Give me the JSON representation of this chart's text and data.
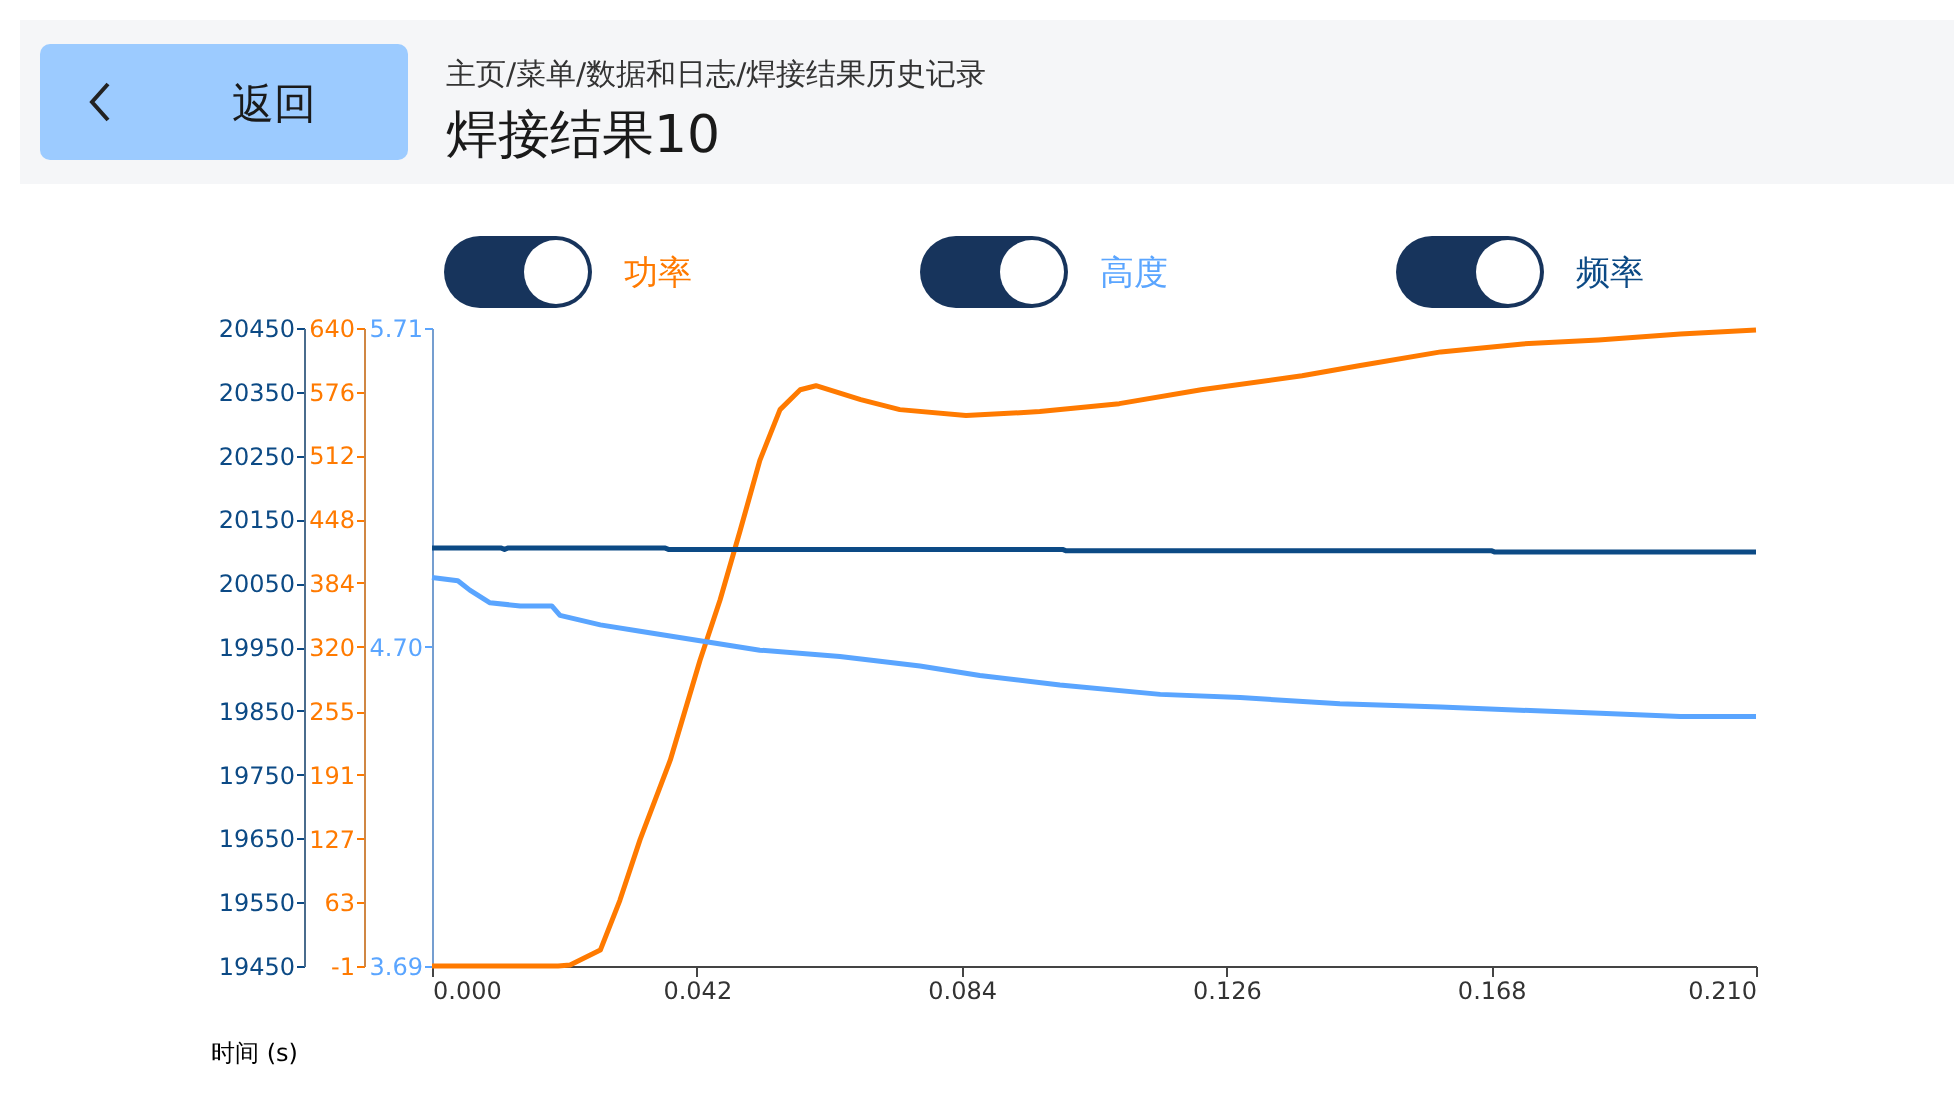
{
  "chart_data": {
    "type": "line",
    "title": "焊接结果10",
    "subtitle": "主页/菜单/数据和日志/焊接结果历史记录",
    "annotations": [
      "返回"
    ],
    "xlabel": "时间 (s)",
    "legend": "top",
    "xlim": [
      0,
      0.21
    ],
    "xticks": [
      {
        "value": 0,
        "label": "0.000"
      },
      0.042,
      0.084,
      0.126,
      0.168,
      {
        "value": 0.21,
        "label": "0.210"
      }
    ],
    "ylim": [
      19450,
      20450
    ],
    "yticks": [
      19450,
      19550,
      19650,
      19750,
      19850,
      19950,
      20050,
      20150,
      20250,
      20350,
      20450
    ],
    "y2lim": [
      -1,
      640
    ],
    "y2ticks": [
      -1,
      63,
      127,
      191,
      255,
      320,
      384,
      448,
      512,
      576,
      640
    ],
    "y3lim": [
      3.69,
      5.71
    ],
    "y3ticks": [
      3.69,
      {
        "value": 4.7,
        "label": "4.70"
      },
      5.71
    ],
    "series": [
      {
        "name": "功率",
        "color": "#ff7a00",
        "axis": "y2",
        "x": [
          0,
          0.02,
          0.0219,
          0.0267,
          0.0298,
          0.033,
          0.0378,
          0.0425,
          0.0457,
          0.0489,
          0.052,
          0.0552,
          0.0584,
          0.0609,
          0.068,
          0.0742,
          0.0847,
          0.0964,
          0.109,
          0.122,
          0.138,
          0.147,
          0.16,
          0.173,
          0.185,
          0.198,
          0.21
        ],
        "values": [
          -1,
          -1,
          0,
          15,
          65,
          126,
          206,
          306,
          367,
          437,
          507,
          558,
          578,
          582,
          568,
          558,
          552,
          556,
          564,
          578,
          592,
          602,
          616,
          624,
          628,
          634,
          638
        ]
      },
      {
        "name": "高度",
        "color": "#5aa5ff",
        "axis": "y3",
        "x": [
          0,
          0.0041,
          0.006,
          0.0092,
          0.014,
          0.019,
          0.0203,
          0.0267,
          0.033,
          0.0425,
          0.052,
          0.0647,
          0.0774,
          0.0869,
          0.0996,
          0.1155,
          0.1282,
          0.144,
          0.16,
          0.1726,
          0.1853,
          0.198,
          0.21
        ],
        "values": [
          4.92,
          4.91,
          4.88,
          4.84,
          4.83,
          4.83,
          4.8,
          4.77,
          4.75,
          4.72,
          4.69,
          4.67,
          4.64,
          4.61,
          4.58,
          4.55,
          4.54,
          4.52,
          4.51,
          4.5,
          4.49,
          4.48,
          4.48
        ]
      },
      {
        "name": "频率",
        "color": "#0c4a85",
        "axis": "y",
        "x": [
          0,
          0.011,
          0.0115,
          0.012,
          0.037,
          0.0375,
          0.1,
          0.1005,
          0.168,
          0.1685,
          0.21
        ],
        "values": [
          20105,
          20105,
          20103,
          20105,
          20105,
          20103,
          20103,
          20101,
          20101,
          20099,
          20099
        ]
      }
    ]
  }
}
